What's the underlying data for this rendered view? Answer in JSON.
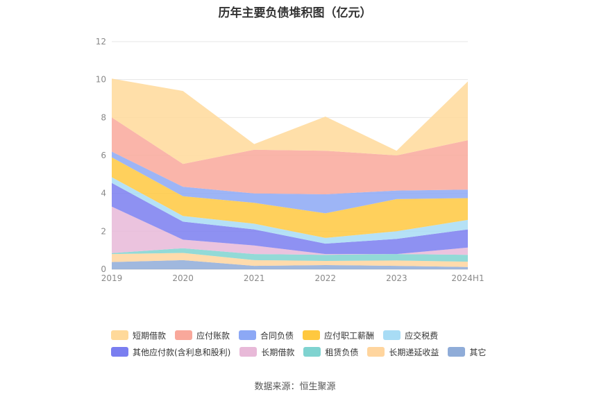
{
  "title": "历年主要负债堆积图（亿元）",
  "source": "数据来源：恒生聚源",
  "chart_data": {
    "type": "area",
    "stacked": true,
    "title": "历年主要负债堆积图（亿元）",
    "categories": [
      "2019",
      "2020",
      "2021",
      "2022",
      "2023",
      "2024H1"
    ],
    "ylim": [
      0,
      12
    ],
    "yticks": [
      "0",
      "2",
      "4",
      "6",
      "8",
      "10",
      "12"
    ],
    "grid": true,
    "legend_position": "bottom",
    "series": [
      {
        "name": "其它",
        "color": "#8facd8",
        "values": [
          0.38,
          0.48,
          0.18,
          0.22,
          0.18,
          0.12
        ]
      },
      {
        "name": "长期递延收益",
        "color": "#ffd59e",
        "values": [
          0.42,
          0.38,
          0.3,
          0.22,
          0.28,
          0.28
        ]
      },
      {
        "name": "租赁负债",
        "color": "#7fd3d0",
        "values": [
          0.05,
          0.25,
          0.32,
          0.32,
          0.34,
          0.36
        ]
      },
      {
        "name": "长期借款",
        "color": "#e8b9d8",
        "values": [
          2.45,
          0.45,
          0.45,
          0.04,
          0.0,
          0.38
        ]
      },
      {
        "name": "其他应付款(含利息和股利)",
        "color": "#7a7ef0",
        "values": [
          1.25,
          0.95,
          0.85,
          0.55,
          0.8,
          0.96
        ]
      },
      {
        "name": "应交税费",
        "color": "#a8dcf5",
        "values": [
          0.3,
          0.3,
          0.3,
          0.3,
          0.4,
          0.5
        ]
      },
      {
        "name": "应付职工薪酬",
        "color": "#ffc83f",
        "values": [
          1.05,
          1.04,
          1.1,
          1.3,
          1.7,
          1.15
        ]
      },
      {
        "name": "合同负债",
        "color": "#8ca8f5",
        "values": [
          0.3,
          0.5,
          0.5,
          1.0,
          0.45,
          0.45
        ]
      },
      {
        "name": "应付账款",
        "color": "#f9a89b",
        "values": [
          1.8,
          1.2,
          2.3,
          2.3,
          1.85,
          2.6
        ]
      },
      {
        "name": "短期借款",
        "color": "#ffd99a",
        "values": [
          2.05,
          3.85,
          0.3,
          1.8,
          0.25,
          3.1
        ]
      }
    ]
  },
  "legend_rows": [
    [
      {
        "label": "短期借款",
        "color": "#ffd99a"
      },
      {
        "label": "应付账款",
        "color": "#f9a89b"
      },
      {
        "label": "合同负债",
        "color": "#8ca8f5"
      },
      {
        "label": "应付职工薪酬",
        "color": "#ffc83f"
      },
      {
        "label": "应交税费",
        "color": "#a8dcf5"
      }
    ],
    [
      {
        "label": "其他应付款(含利息和股利)",
        "color": "#7a7ef0"
      },
      {
        "label": "长期借款",
        "color": "#e8b9d8"
      },
      {
        "label": "租赁负债",
        "color": "#7fd3d0"
      },
      {
        "label": "长期递延收益",
        "color": "#ffd59e"
      },
      {
        "label": "其它",
        "color": "#8facd8"
      }
    ]
  ]
}
